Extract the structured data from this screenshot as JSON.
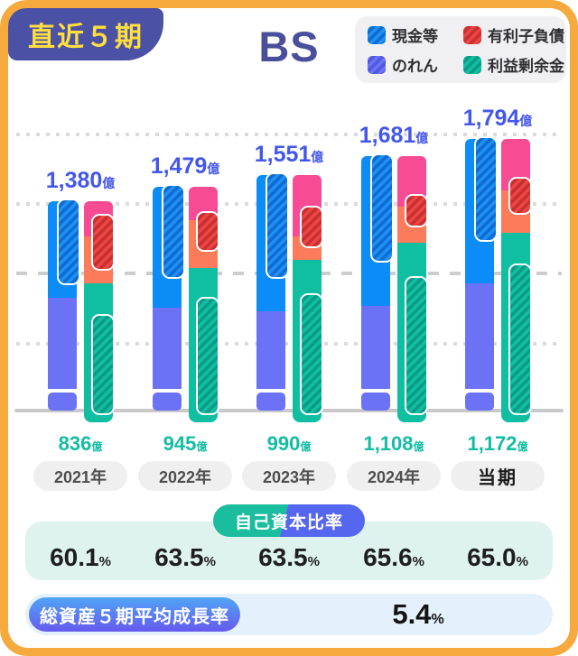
{
  "header": {
    "badge": "直近５期",
    "title": "BS"
  },
  "legend": [
    {
      "id": "cash",
      "label": "現金等"
    },
    {
      "id": "debt",
      "label": "有利子負債"
    },
    {
      "id": "goodwill",
      "label": "のれん"
    },
    {
      "id": "retained",
      "label": "利益剰余金"
    }
  ],
  "colors": {
    "frame": "#F6A93C",
    "badge_bg": "#4B51A5",
    "badge_text": "#FFDF3E",
    "title": "#4A4F9B",
    "cash": "#1E8FF5",
    "cash_stripe": "#0E6CD0",
    "cash_solid": "#0B8CF7",
    "goodwill": "#6B72F5",
    "goodwill_stripe": "#5059DF",
    "debt": "#EF4444",
    "debt_stripe": "#C53030",
    "retained": "#10BFA2",
    "retained_stripe": "#0C9B85",
    "pink": "#F74B93",
    "orange": "#FC7B5B",
    "total_label": "#4457EB",
    "retained_label": "#13BDA4",
    "panel_mint": "#DEF3EE",
    "panel_blue": "#E4F1FC",
    "pill_equity_left": "#1ABD9D",
    "pill_equity_right": "#5566EF",
    "pill_growth_top": "#4FA5F6",
    "pill_growth_bottom": "#6659EE"
  },
  "chart_data": {
    "type": "bar",
    "title": "BS（直近５期）",
    "unit_label": "億",
    "categories": [
      "2021年",
      "2022年",
      "2023年",
      "2024年",
      "当期"
    ],
    "series": [
      {
        "name": "総資産(億)",
        "values": [
          1380,
          1479,
          1551,
          1681,
          1794
        ]
      },
      {
        "name": "利益剰余金(億)",
        "values": [
          836,
          945,
          990,
          1108,
          1172
        ]
      },
      {
        "name": "自己資本比率(%)",
        "values": [
          60.1,
          63.5,
          63.5,
          65.6,
          65.0
        ]
      }
    ],
    "legend_entries": [
      "現金等",
      "有利子負債",
      "のれん",
      "利益剰余金"
    ],
    "grid": "dotted horizontal",
    "periods": [
      {
        "year": "2021年",
        "is_current": false,
        "total": "1,380",
        "total_value": 1380,
        "retained": "836",
        "retained_value": 836,
        "equity_ratio": "60.1",
        "fractions": {
          "blue": 0.46,
          "blue_ov": 0.4,
          "pink": 0.17,
          "teal_top": 0.394,
          "red_ov_top": 0.06,
          "red_ov_bot": 0.33,
          "teal_ov": 0.54
        }
      },
      {
        "year": "2022年",
        "is_current": false,
        "total": "1,479",
        "total_value": 1479,
        "retained": "945",
        "retained_value": 945,
        "equity_ratio": "63.5",
        "fractions": {
          "blue": 0.54,
          "blue_ov": 0.41,
          "pink": 0.15,
          "teal_top": 0.361,
          "red_ov_top": 0.11,
          "red_ov_bot": 0.29,
          "teal_ov": 0.49
        }
      },
      {
        "year": "2023年",
        "is_current": false,
        "total": "1,551",
        "total_value": 1551,
        "retained": "990",
        "retained_value": 990,
        "equity_ratio": "63.5",
        "fractions": {
          "blue": 0.58,
          "blue_ov": 0.44,
          "pink": 0.26,
          "teal_top": 0.362,
          "red_ov_top": 0.13,
          "red_ov_bot": 0.31,
          "teal_ov": 0.5
        }
      },
      {
        "year": "2024年",
        "is_current": false,
        "total": "1,681",
        "total_value": 1681,
        "retained": "1,108",
        "retained_value": 1108,
        "equity_ratio": "65.6",
        "fractions": {
          "blue": 0.59,
          "blue_ov": 0.42,
          "pink": 0.2,
          "teal_top": 0.341,
          "red_ov_top": 0.15,
          "red_ov_bot": 0.28,
          "teal_ov": 0.47
        }
      },
      {
        "year": "当期",
        "is_current": true,
        "total": "1,794",
        "total_value": 1794,
        "retained": "1,172",
        "retained_value": 1172,
        "equity_ratio": "65.0",
        "fractions": {
          "blue": 0.53,
          "blue_ov": 0.38,
          "pink": 0.19,
          "teal_top": 0.347,
          "red_ov_top": 0.14,
          "red_ov_bot": 0.28,
          "teal_ov": 0.46
        }
      }
    ]
  },
  "sections": {
    "equity_ratio": {
      "label": "自己資本比率",
      "unit": "%"
    },
    "growth": {
      "label": "総資産５期平均成長率",
      "value": "5.4",
      "unit": "%"
    }
  }
}
